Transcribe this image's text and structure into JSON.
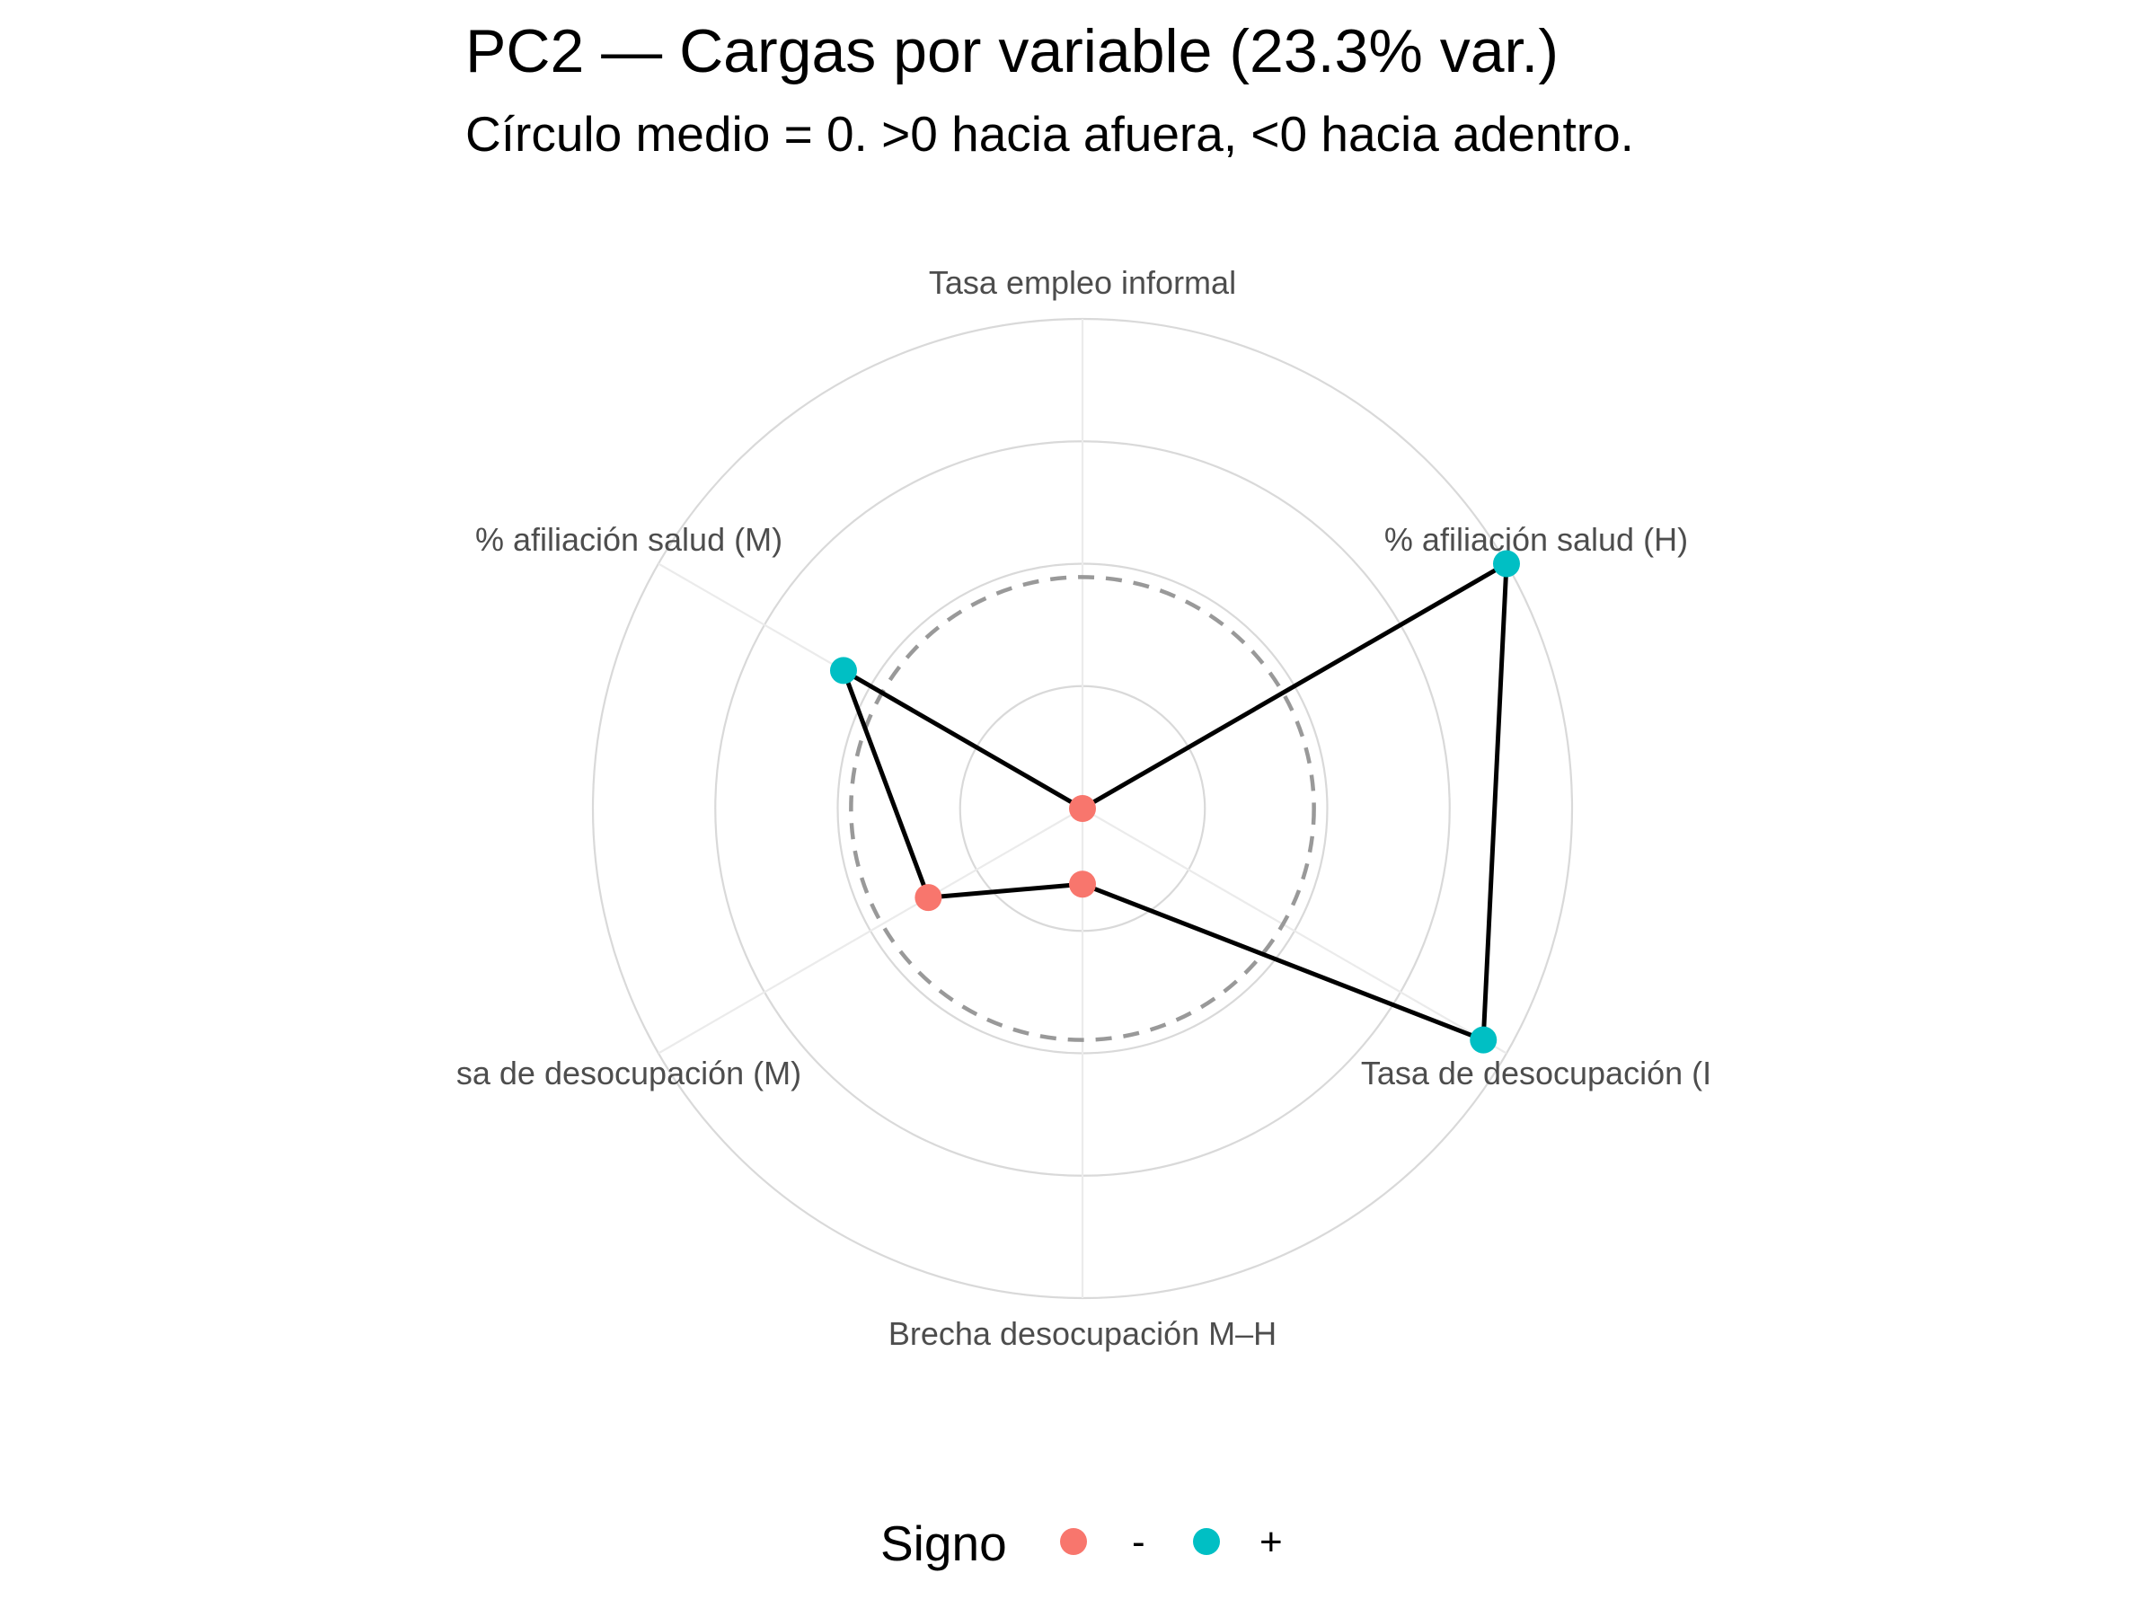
{
  "chart_data": {
    "type": "radar",
    "title": "PC2 — Cargas por variable (23.3% var.)",
    "subtitle": "Círculo medio = 0. >0 hacia afuera, <0 hacia adentro.",
    "variables": [
      "Tasa empleo informal",
      "% afiliación salud (H)",
      "Tasa de desocupación (H)",
      "Brecha desocupación M–H",
      "Tasa de desocupación (M)",
      "% afiliación salud (M)"
    ],
    "axis_labels_shown": [
      "Tasa empleo informal",
      "% afiliación salud (H)",
      "Tasa de desocupación (I",
      "Brecha desocupación M–H",
      "sa de desocupación (M)",
      "% afiliación salud (M)"
    ],
    "values": [
      -0.52,
      0.58,
      0.52,
      -0.35,
      -0.12,
      0.1
    ],
    "signs": [
      "-",
      "+",
      "+",
      "-",
      "-",
      "+"
    ],
    "radial_range": [
      -0.52,
      0.58
    ],
    "zero_reference": "dashed-circle",
    "grid": true,
    "legend": {
      "title": "Signo",
      "position": "bottom",
      "entries": [
        {
          "label": "-",
          "color": "#F8766D"
        },
        {
          "label": "+",
          "color": "#00BFC4"
        }
      ]
    },
    "colors": {
      "negative": "#F8766D",
      "positive": "#00BFC4",
      "line": "#000000",
      "grid": "#d9d9d9",
      "zero_circle": "#999999"
    }
  }
}
